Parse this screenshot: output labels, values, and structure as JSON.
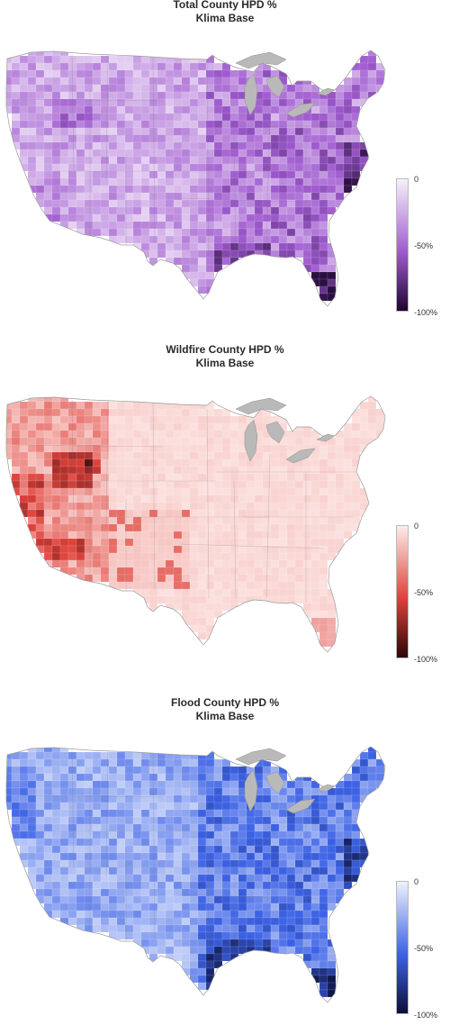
{
  "panels": [
    {
      "title_line1": "Total County HPD %",
      "title_line2": "Klima Base",
      "colors": {
        "light": "#f7f0fb",
        "mid": "#a05bd0",
        "dark": "#1e0530"
      },
      "pattern": "total",
      "legend": {
        "top": "0",
        "mid": "-50%",
        "bottom": "-100%"
      }
    },
    {
      "title_line1": "Wildfire County HPD %",
      "title_line2": "Klima Base",
      "colors": {
        "light": "#fdecea",
        "mid": "#e0413a",
        "dark": "#2b0606"
      },
      "pattern": "wildfire",
      "legend": {
        "top": "0",
        "mid": "-50%",
        "bottom": "-100%"
      }
    },
    {
      "title_line1": "Flood County HPD %",
      "title_line2": "Klima Base",
      "colors": {
        "light": "#eef2fd",
        "mid": "#3c62e6",
        "dark": "#0a0f3a"
      },
      "pattern": "flood",
      "legend": {
        "top": "0",
        "mid": "-50%",
        "bottom": "-100%"
      }
    }
  ],
  "great_lakes_color": "#b9b9b9"
}
